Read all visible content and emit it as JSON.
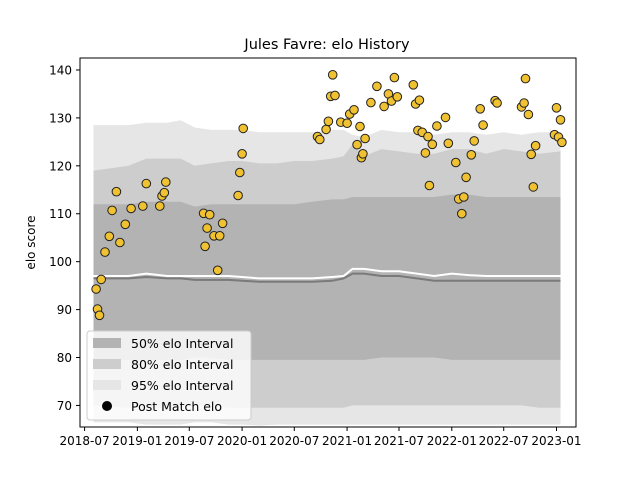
{
  "chart_data": {
    "type": "scatter",
    "title": "Jules Favre: elo History",
    "xlabel": "",
    "ylabel": "elo score",
    "xlim": [
      "2018-06-15",
      "2023-03-10"
    ],
    "ylim": [
      65.5,
      142.5
    ],
    "x_ticks": [
      "2018-07",
      "2019-01",
      "2019-07",
      "2020-01",
      "2020-07",
      "2021-01",
      "2021-07",
      "2022-01",
      "2022-07",
      "2023-01"
    ],
    "y_ticks": [
      70,
      80,
      90,
      100,
      110,
      120,
      130,
      140
    ],
    "grid": false,
    "legend_position": "lower-left",
    "legend": [
      {
        "label": "50% elo Interval",
        "key": "band50"
      },
      {
        "label": "80% elo Interval",
        "key": "band80"
      },
      {
        "label": "95% elo Interval",
        "key": "band95"
      },
      {
        "label": "Post Match elo",
        "key": "points"
      }
    ],
    "colors": {
      "band50": "#b3b3b3",
      "band80": "#cdcdcd",
      "band95": "#e6e6e6",
      "median_line": "#7a7a7a",
      "mean_line": "#ffffff",
      "point_fill": "#f0c232",
      "point_edge": "#222222"
    },
    "band_dates": [
      "2018-08-01",
      "2018-12-01",
      "2019-02-01",
      "2019-04-15",
      "2019-06-01",
      "2019-07-20",
      "2019-09-15",
      "2019-11-15",
      "2020-01-01",
      "2020-03-01",
      "2020-05-01",
      "2020-07-01",
      "2020-09-01",
      "2020-11-10",
      "2020-12-20",
      "2021-01-20",
      "2021-03-01",
      "2021-05-01",
      "2021-07-01",
      "2021-09-01",
      "2021-11-01",
      "2022-01-01",
      "2022-03-01",
      "2022-05-01",
      "2022-07-01",
      "2022-09-01",
      "2022-11-01",
      "2023-01-15"
    ],
    "band95_upper": [
      128.5,
      128.5,
      129.0,
      129.0,
      129.5,
      128.0,
      127.5,
      127.5,
      127.5,
      127.0,
      127.0,
      127.0,
      127.0,
      127.5,
      127.5,
      126.5,
      126.0,
      127.5,
      127.0,
      127.0,
      126.5,
      127.0,
      127.0,
      126.5,
      127.0,
      126.5,
      127.0,
      127.0
    ],
    "band95_lower": [
      66.5,
      66.5,
      66.0,
      66.0,
      66.0,
      66.5,
      66.5,
      66.0,
      66.0,
      65.8,
      66.0,
      66.0,
      66.0,
      66.0,
      66.0,
      66.0,
      66.0,
      66.0,
      66.0,
      66.0,
      66.0,
      66.0,
      66.0,
      66.0,
      66.0,
      66.0,
      66.0,
      66.0
    ],
    "band80_upper": [
      119.0,
      120.0,
      121.5,
      121.5,
      121.5,
      120.0,
      120.5,
      121.0,
      121.0,
      120.5,
      120.5,
      121.0,
      121.0,
      121.5,
      122.0,
      124.5,
      122.0,
      123.5,
      123.0,
      122.5,
      122.5,
      123.5,
      123.5,
      122.5,
      123.5,
      123.0,
      122.5,
      123.0
    ],
    "band80_lower": [
      70.0,
      69.5,
      69.5,
      69.5,
      69.5,
      70.0,
      70.0,
      69.5,
      69.5,
      69.5,
      69.5,
      69.5,
      69.5,
      69.5,
      69.5,
      70.0,
      70.0,
      70.0,
      70.0,
      70.0,
      70.0,
      70.0,
      70.0,
      70.0,
      70.0,
      70.0,
      69.5,
      69.5
    ],
    "band50_upper": [
      112.0,
      112.0,
      112.5,
      112.5,
      112.5,
      111.5,
      112.0,
      112.0,
      112.0,
      112.0,
      112.0,
      112.0,
      112.5,
      113.0,
      113.0,
      113.5,
      113.5,
      113.5,
      113.5,
      113.5,
      113.5,
      114.0,
      114.0,
      113.5,
      113.5,
      113.5,
      113.5,
      113.5
    ],
    "band50_lower": [
      79.5,
      79.5,
      79.5,
      79.5,
      79.5,
      80.0,
      80.0,
      79.5,
      79.5,
      79.5,
      79.5,
      79.5,
      79.5,
      79.5,
      79.5,
      79.5,
      79.5,
      80.0,
      80.0,
      80.0,
      80.0,
      79.5,
      79.5,
      79.5,
      79.5,
      79.5,
      79.5,
      79.5
    ],
    "median_line": [
      96.5,
      96.5,
      96.8,
      96.5,
      96.5,
      96.2,
      96.2,
      96.2,
      96.0,
      95.8,
      95.8,
      95.8,
      95.8,
      96.0,
      96.5,
      97.5,
      97.5,
      97.0,
      97.0,
      96.5,
      96.0,
      96.0,
      96.0,
      96.0,
      96.0,
      96.0,
      96.0,
      96.0
    ],
    "mean_line": [
      97.0,
      97.0,
      97.5,
      97.0,
      97.0,
      97.0,
      97.0,
      97.0,
      96.8,
      96.5,
      96.5,
      96.5,
      96.5,
      96.8,
      97.0,
      98.5,
      98.5,
      98.0,
      98.0,
      97.5,
      97.0,
      97.5,
      97.2,
      97.0,
      97.0,
      97.0,
      97.0,
      97.0
    ],
    "points": [
      {
        "x": "2018-08-10",
        "y": 94.3
      },
      {
        "x": "2018-08-15",
        "y": 90.1
      },
      {
        "x": "2018-08-22",
        "y": 88.8
      },
      {
        "x": "2018-08-28",
        "y": 96.3
      },
      {
        "x": "2018-09-10",
        "y": 102.0
      },
      {
        "x": "2018-09-25",
        "y": 105.3
      },
      {
        "x": "2018-10-05",
        "y": 110.7
      },
      {
        "x": "2018-10-20",
        "y": 114.6
      },
      {
        "x": "2018-11-01",
        "y": 104.0
      },
      {
        "x": "2018-11-20",
        "y": 107.8
      },
      {
        "x": "2018-12-10",
        "y": 111.1
      },
      {
        "x": "2019-01-20",
        "y": 111.6
      },
      {
        "x": "2019-02-01",
        "y": 116.3
      },
      {
        "x": "2019-03-20",
        "y": 111.6
      },
      {
        "x": "2019-03-28",
        "y": 113.7
      },
      {
        "x": "2019-04-05",
        "y": 114.4
      },
      {
        "x": "2019-04-10",
        "y": 116.6
      },
      {
        "x": "2019-08-20",
        "y": 110.1
      },
      {
        "x": "2019-08-25",
        "y": 103.2
      },
      {
        "x": "2019-09-01",
        "y": 107.0
      },
      {
        "x": "2019-09-10",
        "y": 109.8
      },
      {
        "x": "2019-09-25",
        "y": 105.4
      },
      {
        "x": "2019-10-08",
        "y": 98.2
      },
      {
        "x": "2019-10-15",
        "y": 105.4
      },
      {
        "x": "2019-10-25",
        "y": 108.0
      },
      {
        "x": "2019-12-18",
        "y": 113.8
      },
      {
        "x": "2019-12-24",
        "y": 118.6
      },
      {
        "x": "2020-01-01",
        "y": 122.5
      },
      {
        "x": "2020-01-05",
        "y": 127.8
      },
      {
        "x": "2020-09-20",
        "y": 126.1
      },
      {
        "x": "2020-09-28",
        "y": 125.5
      },
      {
        "x": "2020-10-20",
        "y": 127.6
      },
      {
        "x": "2020-10-28",
        "y": 129.3
      },
      {
        "x": "2020-11-05",
        "y": 134.5
      },
      {
        "x": "2020-11-12",
        "y": 139.0
      },
      {
        "x": "2020-11-20",
        "y": 134.7
      },
      {
        "x": "2020-12-10",
        "y": 129.1
      },
      {
        "x": "2021-01-01",
        "y": 128.9
      },
      {
        "x": "2021-01-10",
        "y": 130.8
      },
      {
        "x": "2021-01-25",
        "y": 131.7
      },
      {
        "x": "2021-02-05",
        "y": 124.4
      },
      {
        "x": "2021-02-15",
        "y": 128.2
      },
      {
        "x": "2021-02-20",
        "y": 121.7
      },
      {
        "x": "2021-02-25",
        "y": 122.5
      },
      {
        "x": "2021-03-05",
        "y": 125.7
      },
      {
        "x": "2021-03-25",
        "y": 133.2
      },
      {
        "x": "2021-04-15",
        "y": 136.6
      },
      {
        "x": "2021-05-10",
        "y": 132.4
      },
      {
        "x": "2021-05-25",
        "y": 135.0
      },
      {
        "x": "2021-06-05",
        "y": 133.5
      },
      {
        "x": "2021-06-15",
        "y": 138.4
      },
      {
        "x": "2021-06-25",
        "y": 134.4
      },
      {
        "x": "2021-08-20",
        "y": 136.9
      },
      {
        "x": "2021-08-28",
        "y": 132.9
      },
      {
        "x": "2021-09-05",
        "y": 127.4
      },
      {
        "x": "2021-09-10",
        "y": 133.7
      },
      {
        "x": "2021-09-20",
        "y": 127.0
      },
      {
        "x": "2021-10-01",
        "y": 122.7
      },
      {
        "x": "2021-10-10",
        "y": 126.1
      },
      {
        "x": "2021-10-15",
        "y": 115.9
      },
      {
        "x": "2021-10-25",
        "y": 124.5
      },
      {
        "x": "2021-11-10",
        "y": 128.3
      },
      {
        "x": "2021-12-10",
        "y": 130.1
      },
      {
        "x": "2021-12-20",
        "y": 124.7
      },
      {
        "x": "2022-01-15",
        "y": 120.7
      },
      {
        "x": "2022-01-25",
        "y": 113.1
      },
      {
        "x": "2022-02-05",
        "y": 110.0
      },
      {
        "x": "2022-02-12",
        "y": 113.5
      },
      {
        "x": "2022-02-20",
        "y": 117.6
      },
      {
        "x": "2022-03-10",
        "y": 122.3
      },
      {
        "x": "2022-03-20",
        "y": 125.2
      },
      {
        "x": "2022-04-10",
        "y": 131.9
      },
      {
        "x": "2022-04-20",
        "y": 128.5
      },
      {
        "x": "2022-06-01",
        "y": 133.6
      },
      {
        "x": "2022-06-08",
        "y": 133.1
      },
      {
        "x": "2022-09-01",
        "y": 132.3
      },
      {
        "x": "2022-09-10",
        "y": 133.1
      },
      {
        "x": "2022-09-15",
        "y": 138.2
      },
      {
        "x": "2022-09-25",
        "y": 130.7
      },
      {
        "x": "2022-10-05",
        "y": 122.4
      },
      {
        "x": "2022-10-12",
        "y": 115.6
      },
      {
        "x": "2022-10-20",
        "y": 124.2
      },
      {
        "x": "2022-12-25",
        "y": 126.5
      },
      {
        "x": "2023-01-01",
        "y": 132.1
      },
      {
        "x": "2023-01-08",
        "y": 126.0
      },
      {
        "x": "2023-01-15",
        "y": 129.6
      },
      {
        "x": "2023-01-20",
        "y": 124.9
      }
    ]
  }
}
